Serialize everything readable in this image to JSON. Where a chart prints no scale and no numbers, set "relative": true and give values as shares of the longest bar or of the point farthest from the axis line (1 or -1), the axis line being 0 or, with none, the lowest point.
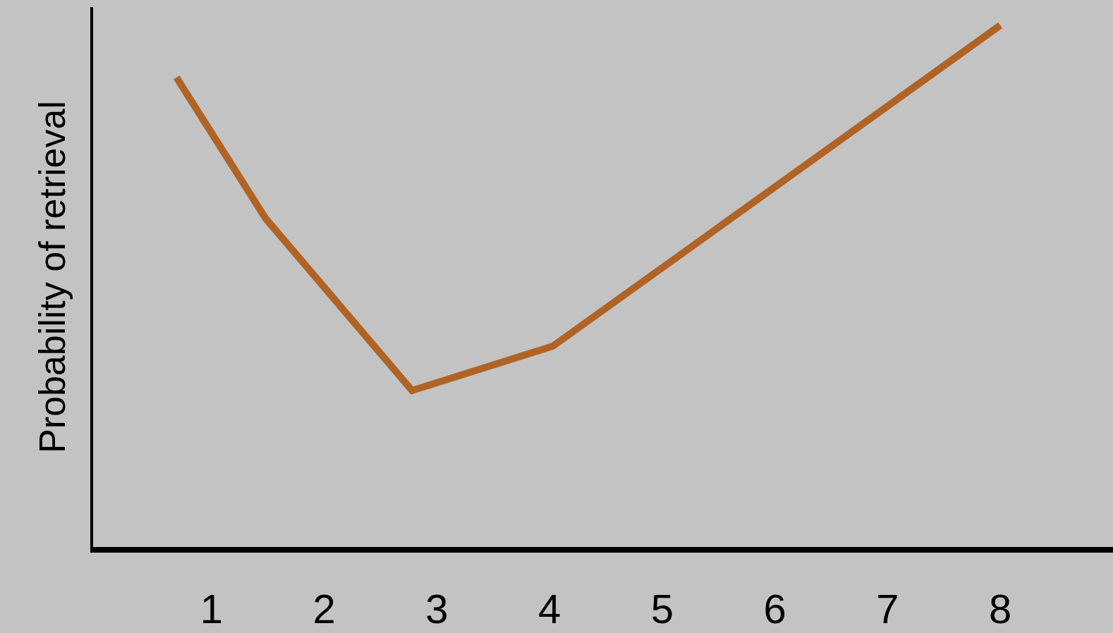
{
  "chart_data": {
    "type": "line",
    "ylabel": "Probability of retrieval",
    "relative": true,
    "x": [
      0.69,
      1.48,
      2.78,
      4.03,
      8.0
    ],
    "series": [
      {
        "color": "#b06325",
        "values": [
          0.9,
          0.63,
          0.3,
          0.385,
          1.0
        ]
      }
    ],
    "xlim": [
      -0.05,
      9.0
    ],
    "xticks": [
      1,
      2,
      3,
      4,
      5,
      6,
      7,
      8
    ],
    "tick_labels": "x",
    "grid": false,
    "marker": "none",
    "line_style": "solid"
  }
}
